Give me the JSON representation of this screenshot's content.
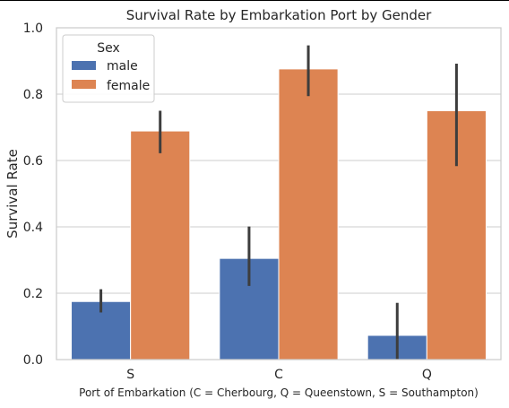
{
  "chart_data": {
    "type": "bar",
    "title": "Survival Rate by Embarkation Port by Gender",
    "xlabel": "Port of Embarkation (C = Cherbourg, Q = Queenstown, S = Southampton)",
    "ylabel": "Survival Rate",
    "categories": [
      "S",
      "C",
      "Q"
    ],
    "ylim": [
      0,
      1.0
    ],
    "yticks": [
      0.0,
      0.2,
      0.4,
      0.6,
      0.8,
      1.0
    ],
    "ytick_labels": [
      "0.0",
      "0.2",
      "0.4",
      "0.6",
      "0.8",
      "1.0"
    ],
    "grid": "horizontal",
    "legend": {
      "title": "Sex",
      "placement": "top-left"
    },
    "series": [
      {
        "name": "male",
        "color": "#4c72b0",
        "values": [
          0.175,
          0.305,
          0.073
        ],
        "ci_low": [
          0.142,
          0.222,
          0.0
        ],
        "ci_high": [
          0.212,
          0.401,
          0.171
        ]
      },
      {
        "name": "female",
        "color": "#dd8452",
        "values": [
          0.689,
          0.876,
          0.75
        ],
        "ci_low": [
          0.622,
          0.794,
          0.583
        ],
        "ci_high": [
          0.75,
          0.947,
          0.892
        ]
      }
    ]
  }
}
